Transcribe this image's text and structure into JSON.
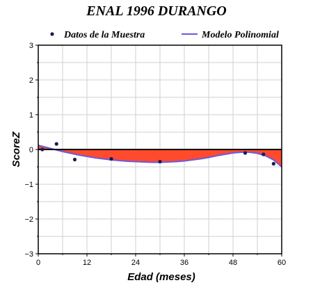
{
  "chart_data": {
    "type": "scatter",
    "title": "ENAL 1996 DURANGO",
    "xlabel": "Edad (meses)",
    "ylabel": "ScoreZ",
    "xlim": [
      0,
      60
    ],
    "ylim": [
      -3,
      3
    ],
    "x_ticks": [
      0,
      12,
      24,
      36,
      48,
      60
    ],
    "y_ticks": [
      -3,
      -2,
      -1,
      0,
      1,
      2,
      3
    ],
    "x_tick_labels": [
      "0",
      "12",
      "24",
      "36",
      "48",
      "60"
    ],
    "y_tick_labels": [
      "−3",
      "−2",
      "−1",
      "0",
      "1",
      "2",
      "3"
    ],
    "grid": true,
    "legend_position": "top",
    "series": [
      {
        "name": "Datos de la Muestra",
        "kind": "scatter",
        "color": "#1a1a55",
        "points": [
          {
            "x": 1,
            "y": 0.0
          },
          {
            "x": 4.5,
            "y": 0.16
          },
          {
            "x": 9,
            "y": -0.29
          },
          {
            "x": 18,
            "y": -0.27
          },
          {
            "x": 30,
            "y": -0.35
          },
          {
            "x": 51,
            "y": -0.1
          },
          {
            "x": 55.5,
            "y": -0.14
          },
          {
            "x": 58,
            "y": -0.41
          }
        ]
      },
      {
        "name": "Modelo Polinomial",
        "kind": "line",
        "color": "#6a5ae0",
        "points": [
          {
            "x": 0,
            "y": 0.12
          },
          {
            "x": 2,
            "y": 0.06
          },
          {
            "x": 4,
            "y": 0.0
          },
          {
            "x": 6,
            "y": -0.06
          },
          {
            "x": 8,
            "y": -0.11
          },
          {
            "x": 10,
            "y": -0.16
          },
          {
            "x": 12,
            "y": -0.2
          },
          {
            "x": 14,
            "y": -0.24
          },
          {
            "x": 16,
            "y": -0.27
          },
          {
            "x": 18,
            "y": -0.3
          },
          {
            "x": 20,
            "y": -0.32
          },
          {
            "x": 22,
            "y": -0.34
          },
          {
            "x": 24,
            "y": -0.35
          },
          {
            "x": 26,
            "y": -0.36
          },
          {
            "x": 28,
            "y": -0.37
          },
          {
            "x": 30,
            "y": -0.37
          },
          {
            "x": 32,
            "y": -0.36
          },
          {
            "x": 34,
            "y": -0.35
          },
          {
            "x": 36,
            "y": -0.33
          },
          {
            "x": 38,
            "y": -0.3
          },
          {
            "x": 40,
            "y": -0.27
          },
          {
            "x": 42,
            "y": -0.23
          },
          {
            "x": 44,
            "y": -0.18
          },
          {
            "x": 46,
            "y": -0.14
          },
          {
            "x": 48,
            "y": -0.1
          },
          {
            "x": 50,
            "y": -0.08
          },
          {
            "x": 52,
            "y": -0.08
          },
          {
            "x": 54,
            "y": -0.11
          },
          {
            "x": 56,
            "y": -0.18
          },
          {
            "x": 58,
            "y": -0.3
          },
          {
            "x": 60,
            "y": -0.5
          }
        ]
      }
    ],
    "fill_between_model_and_zero": {
      "color": "#ff4a2e"
    },
    "zero_line_color": "#000000"
  }
}
